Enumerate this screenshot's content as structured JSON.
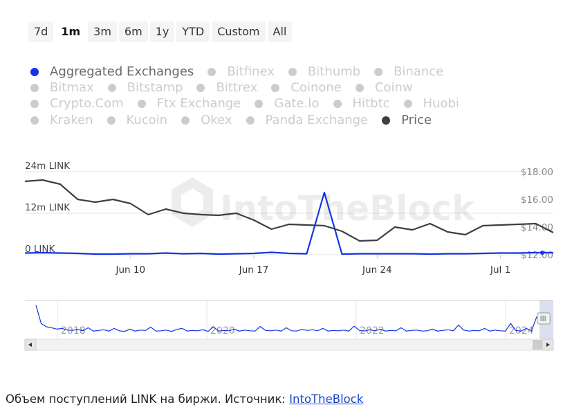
{
  "range_selector": {
    "buttons": [
      "7d",
      "1m",
      "3m",
      "6m",
      "1y",
      "YTD",
      "Custom",
      "All"
    ],
    "active": "1m"
  },
  "legend": {
    "rows": [
      [
        {
          "label": "Aggregated Exchanges",
          "active": true,
          "color": "#1432e6"
        },
        {
          "label": "Bitfinex",
          "active": false,
          "color": "#cccccc"
        },
        {
          "label": "Bithumb",
          "active": false,
          "color": "#cccccc"
        },
        {
          "label": "Binance",
          "active": false,
          "color": "#cccccc"
        }
      ],
      [
        {
          "label": "Bitmax",
          "active": false,
          "color": "#cccccc"
        },
        {
          "label": "Bitstamp",
          "active": false,
          "color": "#cccccc"
        },
        {
          "label": "Bittrex",
          "active": false,
          "color": "#cccccc"
        },
        {
          "label": "Coinone",
          "active": false,
          "color": "#cccccc"
        },
        {
          "label": "Coinw",
          "active": false,
          "color": "#cccccc"
        }
      ],
      [
        {
          "label": "Crypto.Com",
          "active": false,
          "color": "#cccccc"
        },
        {
          "label": "Ftx Exchange",
          "active": false,
          "color": "#cccccc"
        },
        {
          "label": "Gate.Io",
          "active": false,
          "color": "#cccccc"
        },
        {
          "label": "Hitbtc",
          "active": false,
          "color": "#cccccc"
        },
        {
          "label": "Huobi",
          "active": false,
          "color": "#cccccc"
        }
      ],
      [
        {
          "label": "Kraken",
          "active": false,
          "color": "#cccccc"
        },
        {
          "label": "Kucoin",
          "active": false,
          "color": "#cccccc"
        },
        {
          "label": "Okex",
          "active": false,
          "color": "#cccccc"
        },
        {
          "label": "Panda Exchange",
          "active": false,
          "color": "#cccccc"
        },
        {
          "label": "Price",
          "active": true,
          "color": "#3b3f44"
        }
      ]
    ]
  },
  "chart_data": {
    "type": "line",
    "x_start": "2024-06-04",
    "x_end": "2024-07-04",
    "x_ticks": [
      {
        "label": "Jun 10",
        "date": "2024-06-10"
      },
      {
        "label": "Jun 17",
        "date": "2024-06-17"
      },
      {
        "label": "Jun 24",
        "date": "2024-06-24"
      },
      {
        "label": "Jul 1",
        "date": "2024-07-01"
      }
    ],
    "y_left": {
      "ticks": [
        "0 LINK",
        "12m LINK",
        "24m LINK"
      ],
      "values": [
        0,
        12,
        24
      ],
      "unit": "m LINK"
    },
    "y_right": {
      "ticks": [
        "$12.00",
        "$14.00",
        "$16.00",
        "$18.00"
      ],
      "values": [
        12,
        14,
        16,
        18
      ]
    },
    "series": [
      {
        "name": "Aggregated Exchanges",
        "axis": "left",
        "color": "#1432e6",
        "points": [
          [
            "2024-06-04",
            0.5
          ],
          [
            "2024-06-05",
            0.6
          ],
          [
            "2024-06-06",
            0.5
          ],
          [
            "2024-06-07",
            0.4
          ],
          [
            "2024-06-08",
            0.2
          ],
          [
            "2024-06-09",
            0.2
          ],
          [
            "2024-06-10",
            0.3
          ],
          [
            "2024-06-11",
            0.3
          ],
          [
            "2024-06-12",
            0.5
          ],
          [
            "2024-06-13",
            0.3
          ],
          [
            "2024-06-14",
            0.4
          ],
          [
            "2024-06-15",
            0.2
          ],
          [
            "2024-06-16",
            0.3
          ],
          [
            "2024-06-17",
            0.4
          ],
          [
            "2024-06-18",
            0.7
          ],
          [
            "2024-06-19",
            0.4
          ],
          [
            "2024-06-20",
            0.3
          ],
          [
            "2024-06-21",
            18.0
          ],
          [
            "2024-06-22",
            0.2
          ],
          [
            "2024-06-23",
            0.3
          ],
          [
            "2024-06-24",
            0.3
          ],
          [
            "2024-06-25",
            0.3
          ],
          [
            "2024-06-26",
            0.3
          ],
          [
            "2024-06-27",
            0.2
          ],
          [
            "2024-06-28",
            0.3
          ],
          [
            "2024-06-29",
            0.3
          ],
          [
            "2024-06-30",
            0.4
          ],
          [
            "2024-07-01",
            0.5
          ],
          [
            "2024-07-02",
            0.5
          ],
          [
            "2024-07-03",
            0.6
          ],
          [
            "2024-07-04",
            0.6
          ]
        ]
      },
      {
        "name": "Price",
        "axis": "right",
        "color": "#3b3f44",
        "points": [
          [
            "2024-06-04",
            17.3
          ],
          [
            "2024-06-05",
            17.4
          ],
          [
            "2024-06-06",
            17.1
          ],
          [
            "2024-06-07",
            16.0
          ],
          [
            "2024-06-08",
            15.8
          ],
          [
            "2024-06-09",
            16.0
          ],
          [
            "2024-06-10",
            15.7
          ],
          [
            "2024-06-11",
            14.9
          ],
          [
            "2024-06-12",
            15.3
          ],
          [
            "2024-06-13",
            15.0
          ],
          [
            "2024-06-14",
            14.9
          ],
          [
            "2024-06-15",
            14.85
          ],
          [
            "2024-06-16",
            15.0
          ],
          [
            "2024-06-17",
            14.5
          ],
          [
            "2024-06-18",
            13.85
          ],
          [
            "2024-06-19",
            14.2
          ],
          [
            "2024-06-20",
            14.15
          ],
          [
            "2024-06-21",
            14.1
          ],
          [
            "2024-06-22",
            13.7
          ],
          [
            "2024-06-23",
            13.0
          ],
          [
            "2024-06-24",
            13.05
          ],
          [
            "2024-06-25",
            14.0
          ],
          [
            "2024-06-26",
            13.8
          ],
          [
            "2024-06-27",
            14.25
          ],
          [
            "2024-06-28",
            13.65
          ],
          [
            "2024-06-29",
            13.45
          ],
          [
            "2024-06-30",
            14.1
          ],
          [
            "2024-07-01",
            14.15
          ],
          [
            "2024-07-02",
            14.2
          ],
          [
            "2024-07-03",
            14.25
          ],
          [
            "2024-07-04",
            13.6
          ],
          [
            "2024-07-05",
            12.5
          ]
        ]
      }
    ],
    "navigator": {
      "x_labels": [
        "2018",
        "2020",
        "2022",
        "2024"
      ],
      "series_color": "#1432e6",
      "values": [
        0.9,
        0.35,
        0.25,
        0.22,
        0.18,
        0.2,
        0.15,
        0.14,
        0.17,
        0.13,
        0.22,
        0.12,
        0.14,
        0.16,
        0.12,
        0.2,
        0.13,
        0.11,
        0.18,
        0.12,
        0.15,
        0.14,
        0.24,
        0.12,
        0.13,
        0.15,
        0.11,
        0.17,
        0.2,
        0.12,
        0.14,
        0.13,
        0.16,
        0.11,
        0.25,
        0.12,
        0.14,
        0.13,
        0.18,
        0.12,
        0.15,
        0.13,
        0.12,
        0.26,
        0.14,
        0.13,
        0.15,
        0.12,
        0.22,
        0.13,
        0.12,
        0.17,
        0.14,
        0.16,
        0.13,
        0.2,
        0.12,
        0.14,
        0.13,
        0.15,
        0.12,
        0.27,
        0.14,
        0.12,
        0.16,
        0.13,
        0.18,
        0.12,
        0.14,
        0.13,
        0.22,
        0.12,
        0.14,
        0.15,
        0.12,
        0.13,
        0.18,
        0.12,
        0.14,
        0.16,
        0.13,
        0.3,
        0.15,
        0.12,
        0.14,
        0.13,
        0.2,
        0.12,
        0.15,
        0.13,
        0.12,
        0.35,
        0.14,
        0.12,
        0.2,
        0.13,
        0.55
      ],
      "window": {
        "start_fraction": 0.974,
        "end_fraction": 1.0
      }
    }
  },
  "caption": {
    "text": "Объем поступлений LINK на биржи. Источник: ",
    "link_text": "IntoTheBlock"
  }
}
